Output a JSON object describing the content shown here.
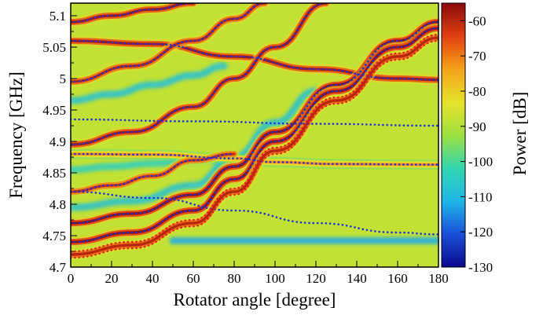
{
  "chart_data": {
    "type": "heatmap",
    "xlabel": "Rotator angle [degree]",
    "ylabel": "Frequency [GHz]",
    "colorbar_label": "Power [dB]",
    "xlim": [
      0,
      180
    ],
    "ylim": [
      4.7,
      5.12
    ],
    "zlim": [
      -130,
      -55
    ],
    "x_ticks": [
      0,
      20,
      40,
      60,
      80,
      100,
      120,
      140,
      160,
      180
    ],
    "x_tick_labels": [
      "0",
      "20",
      "40",
      "60",
      "80",
      "100",
      "120",
      "140",
      "160",
      "180"
    ],
    "y_ticks": [
      4.7,
      4.75,
      4.8,
      4.85,
      4.9,
      4.95,
      5,
      5.05,
      5.1
    ],
    "y_tick_labels": [
      "4.7",
      "4.75",
      "4.8",
      "4.85",
      "4.9",
      "4.95",
      "5",
      "5.05",
      "5.1"
    ],
    "colorbar_ticks": [
      -60,
      -70,
      -80,
      -90,
      -100,
      -110,
      -120,
      -130
    ],
    "colorbar_tick_labels": [
      "-60",
      "-70",
      "-80",
      "-90",
      "-100",
      "-110",
      "-120",
      "-130"
    ],
    "colormap": [
      "#0a0a8c",
      "#1a4fd8",
      "#1fb6e8",
      "#33d6b0",
      "#9ee040",
      "#e6e22a",
      "#f5a21a",
      "#e04010",
      "#8a0a0a"
    ],
    "background_level": -88,
    "fit_series": [
      {
        "color": "#2030d8",
        "style": "dotted",
        "x": [
          0,
          40,
          80,
          120,
          160,
          180
        ],
        "y": [
          5.06,
          5.055,
          5.035,
          5.015,
          5.0,
          4.998
        ]
      },
      {
        "color": "#2030d8",
        "style": "dotted",
        "x": [
          0,
          60,
          120,
          180
        ],
        "y": [
          4.935,
          4.932,
          4.928,
          4.925
        ]
      },
      {
        "color": "#2030d8",
        "style": "dotted",
        "x": [
          0,
          40,
          80,
          100,
          130,
          180
        ],
        "y": [
          4.88,
          4.879,
          4.873,
          4.867,
          4.864,
          4.863
        ]
      },
      {
        "color": "#2030d8",
        "style": "dotted",
        "x": [
          0,
          40,
          80,
          120,
          160,
          180
        ],
        "y": [
          4.82,
          4.81,
          4.79,
          4.77,
          4.755,
          4.752
        ]
      },
      {
        "color": "#2030d8",
        "style": "dotted",
        "x": [
          0,
          20,
          40,
          60,
          80
        ],
        "y": [
          5.09,
          5.1,
          5.11,
          5.12,
          5.13
        ]
      },
      {
        "color": "#2030d8",
        "style": "dotted",
        "x": [
          0,
          30,
          60,
          80,
          95
        ],
        "y": [
          4.995,
          5.02,
          5.06,
          5.095,
          5.12
        ]
      },
      {
        "color": "#2030d8",
        "style": "dotted",
        "x": [
          0,
          30,
          60,
          80,
          100,
          125
        ],
        "y": [
          4.895,
          4.915,
          4.955,
          5.0,
          5.05,
          5.12
        ]
      },
      {
        "color": "#2030d8",
        "style": "dotted",
        "x": [
          0,
          30,
          60,
          80,
          100,
          130,
          160,
          180
        ],
        "y": [
          4.77,
          4.785,
          4.815,
          4.86,
          4.915,
          4.99,
          5.06,
          5.09
        ]
      },
      {
        "color": "#2030d8",
        "style": "dotted",
        "x": [
          0,
          30,
          60,
          80,
          100,
          130,
          160,
          180
        ],
        "y": [
          4.74,
          4.755,
          4.79,
          4.84,
          4.9,
          4.98,
          5.05,
          5.08
        ]
      },
      {
        "color": "#2030d8",
        "style": "dotted",
        "x": [
          0,
          20,
          40,
          60,
          80
        ],
        "y": [
          4.82,
          4.83,
          4.845,
          4.87,
          4.88
        ]
      },
      {
        "color": "#e02020",
        "style": "dotted",
        "x": [
          0,
          30,
          60,
          80,
          100,
          130,
          160,
          180
        ],
        "y": [
          4.725,
          4.74,
          4.775,
          4.825,
          4.89,
          4.97,
          5.04,
          5.07
        ]
      },
      {
        "color": "#e02020",
        "style": "dotted",
        "x": [
          0,
          30,
          60,
          80,
          100,
          130,
          160,
          180
        ],
        "y": [
          4.715,
          4.73,
          4.765,
          4.815,
          4.88,
          4.96,
          5.03,
          5.06
        ]
      }
    ],
    "ridges": [
      {
        "level": -58,
        "x": [
          0,
          40,
          80,
          120,
          160,
          180
        ],
        "y": [
          5.06,
          5.055,
          5.035,
          5.015,
          5.0,
          4.998
        ]
      },
      {
        "level": -72,
        "x": [
          0,
          40,
          80,
          100,
          130,
          180
        ],
        "y": [
          4.88,
          4.879,
          4.873,
          4.867,
          4.864,
          4.863
        ]
      },
      {
        "level": -60,
        "x": [
          0,
          30,
          60,
          80,
          95
        ],
        "y": [
          4.995,
          5.02,
          5.06,
          5.095,
          5.12
        ]
      },
      {
        "level": -58,
        "x": [
          0,
          20,
          40,
          60
        ],
        "y": [
          5.09,
          5.1,
          5.11,
          5.12
        ]
      },
      {
        "level": -58,
        "x": [
          0,
          30,
          60,
          80,
          100,
          125
        ],
        "y": [
          4.895,
          4.915,
          4.955,
          5.0,
          5.05,
          5.12
        ]
      },
      {
        "level": -56,
        "x": [
          0,
          30,
          60,
          80,
          100,
          130,
          160,
          180
        ],
        "y": [
          4.77,
          4.785,
          4.815,
          4.86,
          4.915,
          4.99,
          5.06,
          5.09
        ]
      },
      {
        "level": -56,
        "x": [
          0,
          30,
          60,
          80,
          100,
          130,
          160,
          180
        ],
        "y": [
          4.74,
          4.755,
          4.79,
          4.84,
          4.9,
          4.98,
          5.05,
          5.08
        ]
      },
      {
        "level": -60,
        "x": [
          0,
          30,
          60,
          80,
          100,
          130,
          160,
          180
        ],
        "y": [
          4.72,
          4.735,
          4.77,
          4.82,
          4.885,
          4.965,
          5.035,
          5.065
        ]
      },
      {
        "level": -62,
        "x": [
          0,
          20,
          40,
          60,
          80
        ],
        "y": [
          4.82,
          4.83,
          4.845,
          4.87,
          4.88
        ]
      }
    ],
    "troughs": [
      {
        "level": -108,
        "x": [
          0,
          20,
          40,
          60,
          75
        ],
        "y": [
          4.965,
          4.975,
          4.99,
          5.005,
          5.02
        ]
      },
      {
        "level": -104,
        "x": [
          0,
          20,
          40,
          60,
          80
        ],
        "y": [
          4.855,
          4.86,
          4.865,
          4.87,
          4.875
        ]
      },
      {
        "level": -108,
        "x": [
          0,
          30,
          60,
          80,
          100,
          120
        ],
        "y": [
          4.795,
          4.805,
          4.83,
          4.875,
          4.93,
          4.98
        ]
      },
      {
        "level": -112,
        "x": [
          50,
          80,
          110,
          140,
          170,
          180
        ],
        "y": [
          4.742,
          4.742,
          4.742,
          4.742,
          4.742,
          4.742
        ]
      }
    ]
  }
}
